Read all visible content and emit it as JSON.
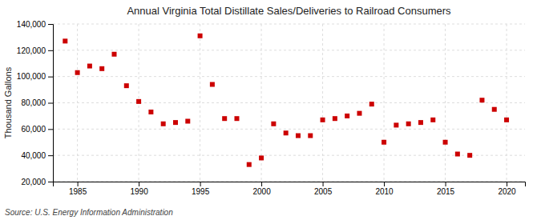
{
  "chart_data": {
    "type": "scatter",
    "title": "Annual Virginia Total Distillate Sales/Deliveries to Railroad Consumers",
    "ylabel": "Thousand Gallons",
    "source": "Source: U.S. Energy Information Administration",
    "x": [
      1984,
      1985,
      1986,
      1987,
      1988,
      1989,
      1990,
      1991,
      1992,
      1993,
      1994,
      1995,
      1996,
      1997,
      1998,
      1999,
      2000,
      2001,
      2002,
      2003,
      2004,
      2005,
      2006,
      2007,
      2008,
      2009,
      2010,
      2011,
      2012,
      2013,
      2014,
      2015,
      2016,
      2017,
      2018,
      2019,
      2020
    ],
    "values": [
      127000,
      103000,
      108000,
      106000,
      117000,
      93000,
      81000,
      73000,
      64000,
      65000,
      66000,
      131000,
      94000,
      68000,
      68000,
      33000,
      38000,
      64000,
      57000,
      55000,
      55000,
      67000,
      68000,
      70000,
      72000,
      79000,
      50000,
      63000,
      64000,
      65000,
      67000,
      50000,
      41000,
      40000,
      82000,
      75000,
      67000
    ],
    "color": "#cc0000",
    "marker": "square",
    "xlim": [
      1983,
      2021.5
    ],
    "ylim": [
      20000,
      140000
    ],
    "xticks": [
      1985,
      1990,
      1995,
      2000,
      2005,
      2010,
      2015,
      2020
    ],
    "yticks": [
      {
        "value": 20000,
        "label": "20,000"
      },
      {
        "value": 40000,
        "label": "40,000"
      },
      {
        "value": 60000,
        "label": "60,000"
      },
      {
        "value": 80000,
        "label": "80,000"
      },
      {
        "value": 100000,
        "label": "100,000"
      },
      {
        "value": 120000,
        "label": "120,000"
      },
      {
        "value": 140000,
        "label": "140,000"
      }
    ],
    "grid": true
  }
}
